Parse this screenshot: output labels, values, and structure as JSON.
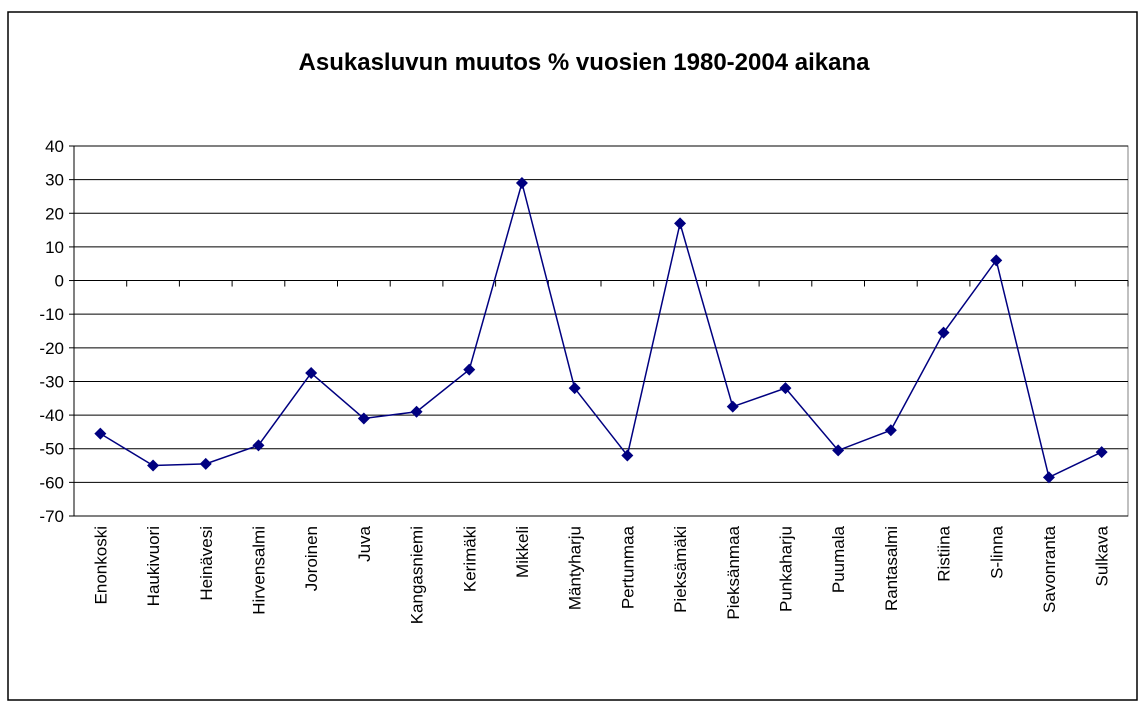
{
  "chart_data": {
    "type": "line",
    "title": "Asukasluvun muutos % vuosien 1980-2004 aikana",
    "categories": [
      "Enonkoski",
      "Haukivuori",
      "Heinävesi",
      "Hirvensalmi",
      "Joroinen",
      "Juva",
      "Kangasniemi",
      "Kerimäki",
      "Mikkeli",
      "Mäntyharju",
      "Pertunmaa",
      "Pieksämäki",
      "Pieksänmaa",
      "Punkaharju",
      "Puumala",
      "Rantasalmi",
      "Ristiina",
      "S-linna",
      "Savonranta",
      "Sulkava"
    ],
    "values": [
      -45.5,
      -55,
      -54.5,
      -49,
      -27.5,
      -41,
      -39,
      -26.5,
      29,
      -32,
      -52,
      17,
      -37.5,
      -32,
      -50.5,
      -44.5,
      -15.5,
      6,
      -58.5,
      -51
    ],
    "color": "#000080",
    "ylim": [
      -70,
      40
    ],
    "yticks": [
      -70,
      -60,
      -50,
      -40,
      -30,
      -20,
      -10,
      0,
      10,
      20,
      30,
      40
    ],
    "grid": true
  }
}
